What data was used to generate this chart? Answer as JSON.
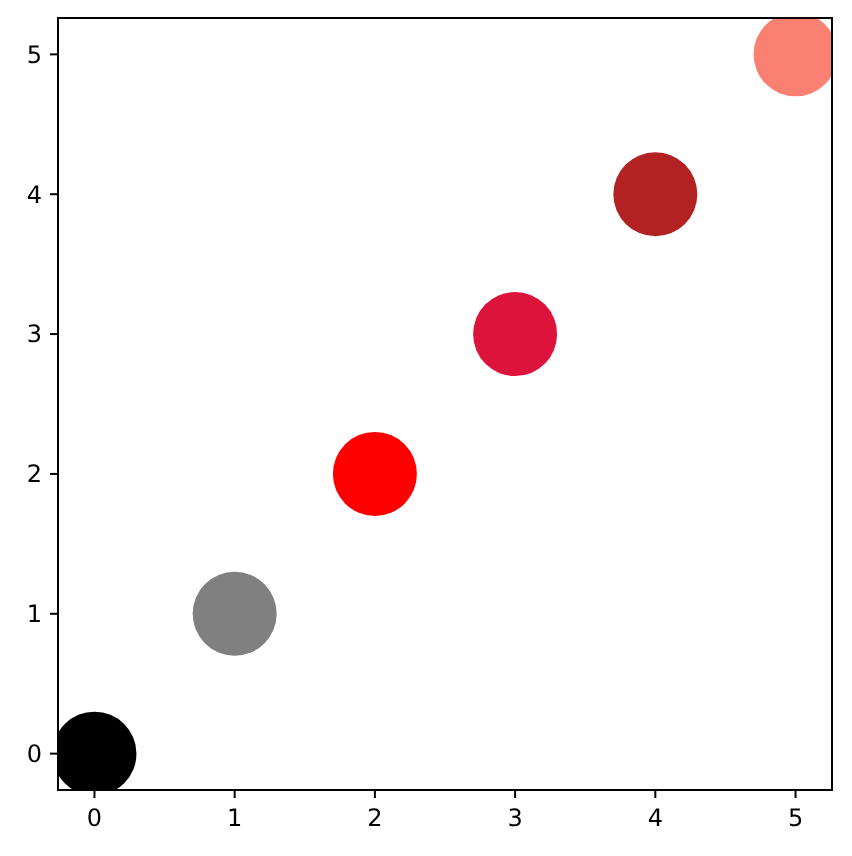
{
  "chart_data": {
    "type": "scatter",
    "x": [
      0,
      1,
      2,
      3,
      4,
      5
    ],
    "values": [
      0,
      1,
      2,
      3,
      4,
      5
    ],
    "colors": [
      "#000000",
      "#808080",
      "#ff0000",
      "#dc143c",
      "#b22222",
      "#fa8072"
    ],
    "xlim": [
      -0.26,
      5.26
    ],
    "ylim": [
      -0.26,
      5.26
    ],
    "xticks": [
      0,
      1,
      2,
      3,
      4,
      5
    ],
    "yticks": [
      0,
      1,
      2,
      3,
      4,
      5
    ],
    "marker": "circle",
    "grid": false
  }
}
